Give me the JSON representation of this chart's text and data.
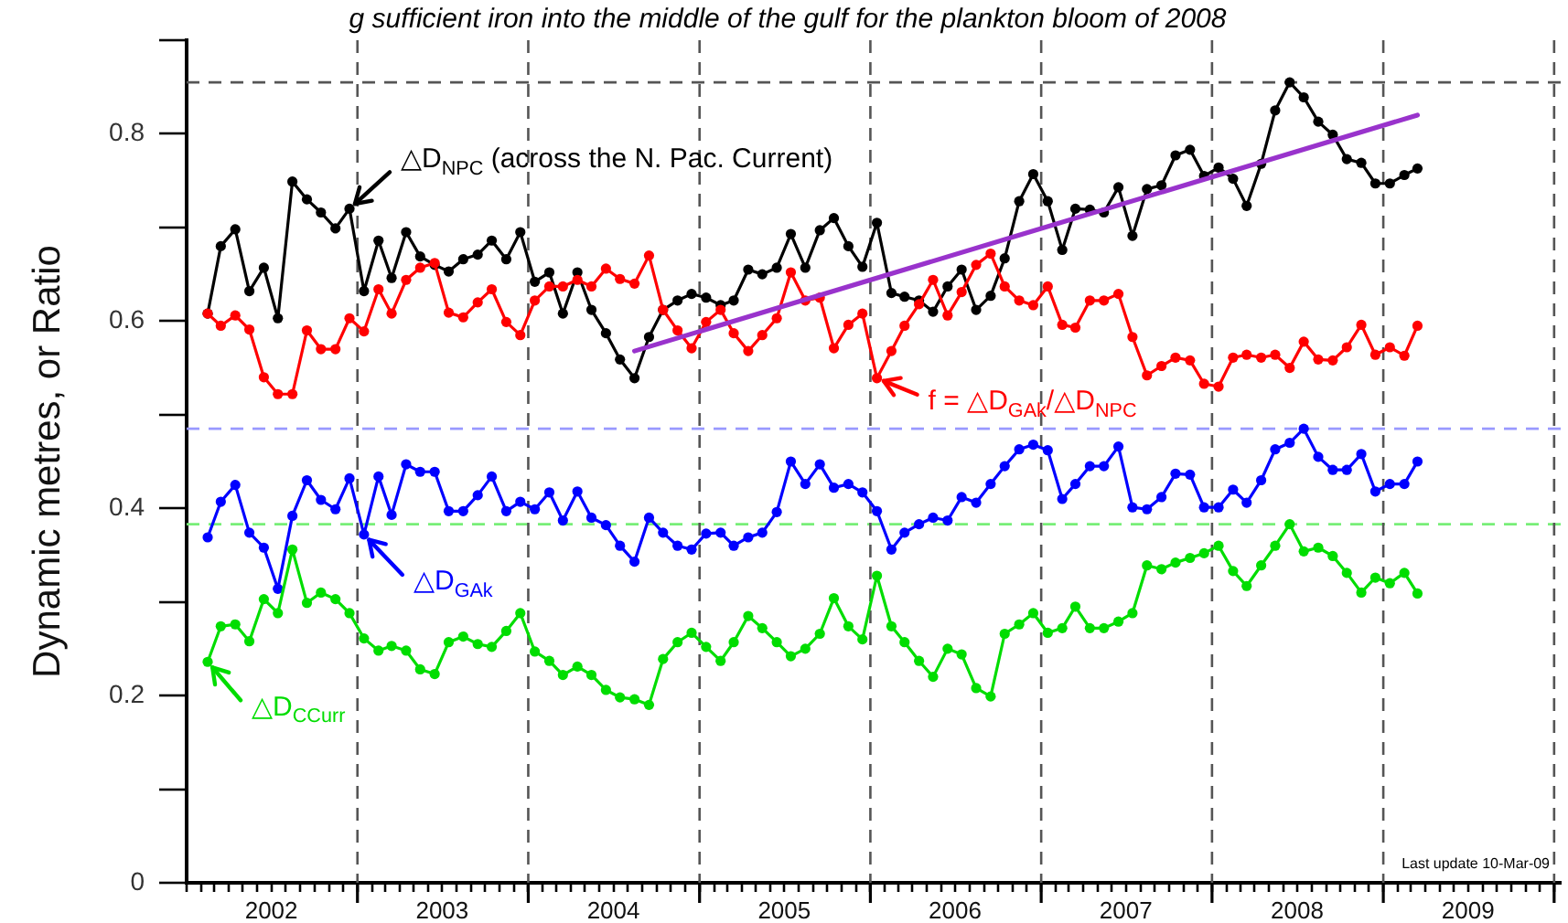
{
  "chart_data": {
    "type": "line",
    "title": "g sufficient iron into the middle of the gulf for the plankton bloom of 2008",
    "ylabel": "Dynamic metres, or Ratio",
    "marker": "circle",
    "x": [
      "2002-02-15",
      "2002-03-15",
      "2002-04-15",
      "2002-05-15",
      "2002-06-15",
      "2002-07-15",
      "2002-08-15",
      "2002-09-15",
      "2002-10-15",
      "2002-11-15",
      "2002-12-15",
      "2003-01-15",
      "2003-02-15",
      "2003-03-15",
      "2003-04-15",
      "2003-05-15",
      "2003-06-15",
      "2003-07-15",
      "2003-08-15",
      "2003-09-15",
      "2003-10-15",
      "2003-11-15",
      "2003-12-15",
      "2004-01-15",
      "2004-02-15",
      "2004-03-15",
      "2004-04-15",
      "2004-05-15",
      "2004-06-15",
      "2004-07-15",
      "2004-08-15",
      "2004-09-15",
      "2004-10-15",
      "2004-11-15",
      "2004-12-15",
      "2005-01-15",
      "2005-02-15",
      "2005-03-15",
      "2005-04-15",
      "2005-05-15",
      "2005-06-15",
      "2005-07-15",
      "2005-08-15",
      "2005-09-15",
      "2005-10-15",
      "2005-11-15",
      "2005-12-15",
      "2006-01-15",
      "2006-02-15",
      "2006-03-15",
      "2006-04-15",
      "2006-05-15",
      "2006-06-15",
      "2006-07-15",
      "2006-08-15",
      "2006-09-15",
      "2006-10-15",
      "2006-11-15",
      "2006-12-15",
      "2007-01-15",
      "2007-02-15",
      "2007-03-15",
      "2007-04-15",
      "2007-05-15",
      "2007-06-15",
      "2007-07-15",
      "2007-08-15",
      "2007-09-15",
      "2007-10-15",
      "2007-11-15",
      "2007-12-15",
      "2008-01-15",
      "2008-02-15",
      "2008-03-15",
      "2008-04-15",
      "2008-05-15",
      "2008-06-15",
      "2008-07-15",
      "2008-08-15",
      "2008-09-15",
      "2008-10-15",
      "2008-11-15",
      "2008-12-15",
      "2009-01-15",
      "2009-02-15",
      "2009-03-15"
    ],
    "xlim": [
      "2002-01-01",
      "2010-01-15"
    ],
    "xticks": [
      {
        "value": "2002-01-01",
        "label": null
      },
      {
        "value": "2002-02-01",
        "label": null
      },
      {
        "value": "2002-03-01",
        "label": null
      },
      {
        "value": "2002-04-01",
        "label": null
      },
      {
        "value": "2002-05-01",
        "label": null
      },
      {
        "value": "2002-06-01",
        "label": null
      },
      {
        "value": "2002-07-01",
        "label": "2002"
      },
      {
        "value": "2002-08-01",
        "label": null
      },
      {
        "value": "2002-09-01",
        "label": null
      },
      {
        "value": "2002-10-01",
        "label": null
      },
      {
        "value": "2002-11-01",
        "label": null
      },
      {
        "value": "2002-12-01",
        "label": null
      },
      {
        "value": "2003-01-01",
        "label": null
      },
      {
        "value": "2003-02-01",
        "label": null
      },
      {
        "value": "2003-03-01",
        "label": null
      },
      {
        "value": "2003-04-01",
        "label": null
      },
      {
        "value": "2003-05-01",
        "label": null
      },
      {
        "value": "2003-06-01",
        "label": null
      },
      {
        "value": "2003-07-01",
        "label": "2003"
      },
      {
        "value": "2003-08-01",
        "label": null
      },
      {
        "value": "2003-09-01",
        "label": null
      },
      {
        "value": "2003-10-01",
        "label": null
      },
      {
        "value": "2003-11-01",
        "label": null
      },
      {
        "value": "2003-12-01",
        "label": null
      },
      {
        "value": "2004-01-01",
        "label": null
      },
      {
        "value": "2004-02-01",
        "label": null
      },
      {
        "value": "2004-03-01",
        "label": null
      },
      {
        "value": "2004-04-01",
        "label": null
      },
      {
        "value": "2004-05-01",
        "label": null
      },
      {
        "value": "2004-06-01",
        "label": null
      },
      {
        "value": "2004-07-01",
        "label": "2004"
      },
      {
        "value": "2004-08-01",
        "label": null
      },
      {
        "value": "2004-09-01",
        "label": null
      },
      {
        "value": "2004-10-01",
        "label": null
      },
      {
        "value": "2004-11-01",
        "label": null
      },
      {
        "value": "2004-12-01",
        "label": null
      },
      {
        "value": "2005-01-01",
        "label": null
      },
      {
        "value": "2005-02-01",
        "label": null
      },
      {
        "value": "2005-03-01",
        "label": null
      },
      {
        "value": "2005-04-01",
        "label": null
      },
      {
        "value": "2005-05-01",
        "label": null
      },
      {
        "value": "2005-06-01",
        "label": null
      },
      {
        "value": "2005-07-01",
        "label": "2005"
      },
      {
        "value": "2005-08-01",
        "label": null
      },
      {
        "value": "2005-09-01",
        "label": null
      },
      {
        "value": "2005-10-01",
        "label": null
      },
      {
        "value": "2005-11-01",
        "label": null
      },
      {
        "value": "2005-12-01",
        "label": null
      },
      {
        "value": "2006-01-01",
        "label": null
      },
      {
        "value": "2006-02-01",
        "label": null
      },
      {
        "value": "2006-03-01",
        "label": null
      },
      {
        "value": "2006-04-01",
        "label": null
      },
      {
        "value": "2006-05-01",
        "label": null
      },
      {
        "value": "2006-06-01",
        "label": null
      },
      {
        "value": "2006-07-01",
        "label": "2006"
      },
      {
        "value": "2006-08-01",
        "label": null
      },
      {
        "value": "2006-09-01",
        "label": null
      },
      {
        "value": "2006-10-01",
        "label": null
      },
      {
        "value": "2006-11-01",
        "label": null
      },
      {
        "value": "2006-12-01",
        "label": null
      },
      {
        "value": "2007-01-01",
        "label": null
      },
      {
        "value": "2007-02-01",
        "label": null
      },
      {
        "value": "2007-03-01",
        "label": null
      },
      {
        "value": "2007-04-01",
        "label": null
      },
      {
        "value": "2007-05-01",
        "label": null
      },
      {
        "value": "2007-06-01",
        "label": null
      },
      {
        "value": "2007-07-01",
        "label": "2007"
      },
      {
        "value": "2007-08-01",
        "label": null
      },
      {
        "value": "2007-09-01",
        "label": null
      },
      {
        "value": "2007-10-01",
        "label": null
      },
      {
        "value": "2007-11-01",
        "label": null
      },
      {
        "value": "2007-12-01",
        "label": null
      },
      {
        "value": "2008-01-01",
        "label": null
      },
      {
        "value": "2008-02-01",
        "label": null
      },
      {
        "value": "2008-03-01",
        "label": null
      },
      {
        "value": "2008-04-01",
        "label": null
      },
      {
        "value": "2008-05-01",
        "label": null
      },
      {
        "value": "2008-06-01",
        "label": null
      },
      {
        "value": "2008-07-01",
        "label": "2008"
      },
      {
        "value": "2008-08-01",
        "label": null
      },
      {
        "value": "2008-09-01",
        "label": null
      },
      {
        "value": "2008-10-01",
        "label": null
      },
      {
        "value": "2008-11-01",
        "label": null
      },
      {
        "value": "2008-12-01",
        "label": null
      },
      {
        "value": "2009-01-01",
        "label": null
      },
      {
        "value": "2009-02-01",
        "label": null
      },
      {
        "value": "2009-03-01",
        "label": null
      },
      {
        "value": "2009-04-01",
        "label": null
      },
      {
        "value": "2009-05-01",
        "label": null
      },
      {
        "value": "2009-06-01",
        "label": null
      },
      {
        "value": "2009-07-01",
        "label": "2009"
      },
      {
        "value": "2009-08-01",
        "label": null
      },
      {
        "value": "2009-09-01",
        "label": null
      },
      {
        "value": "2009-10-01",
        "label": null
      },
      {
        "value": "2009-11-01",
        "label": null
      },
      {
        "value": "2009-12-01",
        "label": null
      },
      {
        "value": "2010-01-01",
        "label": null
      }
    ],
    "ylim": [
      0,
      0.9
    ],
    "yticks": [
      0,
      {
        "value": 0.1,
        "label": null
      },
      0.2,
      {
        "value": 0.3,
        "label": null
      },
      0.4,
      {
        "value": 0.5,
        "label": null
      },
      0.6,
      {
        "value": 0.7,
        "label": null
      },
      0.8,
      {
        "value": 0.9,
        "label": null
      }
    ],
    "series": [
      {
        "color": "#000000",
        "values": [
          0.608,
          0.68,
          0.698,
          0.632,
          0.657,
          0.603,
          0.749,
          0.73,
          0.716,
          0.699,
          0.72,
          0.632,
          0.686,
          0.646,
          0.695,
          0.669,
          0.66,
          0.653,
          0.666,
          0.671,
          0.686,
          0.666,
          0.695,
          0.642,
          0.652,
          0.608,
          0.652,
          0.612,
          0.587,
          0.559,
          0.539,
          0.583,
          0.612,
          0.622,
          0.629,
          0.625,
          0.617,
          0.622,
          0.655,
          0.65,
          0.657,
          0.693,
          0.657,
          0.697,
          0.71,
          0.68,
          0.658,
          0.705,
          0.63,
          0.626,
          0.622,
          0.61,
          0.637,
          0.655,
          0.612,
          0.627,
          0.667,
          0.728,
          0.757,
          0.728,
          0.676,
          0.72,
          0.719,
          0.716,
          0.743,
          0.691,
          0.741,
          0.745,
          0.777,
          0.783,
          0.755,
          0.764,
          0.752,
          0.723,
          0.768,
          0.825,
          0.855,
          0.839,
          0.813,
          0.799,
          0.773,
          0.769,
          0.747,
          0.747,
          0.756,
          0.763
        ]
      },
      {
        "color": "#ff0000",
        "values": [
          0.608,
          0.595,
          0.606,
          0.591,
          0.54,
          0.522,
          0.522,
          0.59,
          0.57,
          0.57,
          0.603,
          0.589,
          0.634,
          0.608,
          0.644,
          0.657,
          0.662,
          0.609,
          0.604,
          0.62,
          0.634,
          0.599,
          0.585,
          0.622,
          0.637,
          0.637,
          0.644,
          0.637,
          0.656,
          0.645,
          0.64,
          0.67,
          0.612,
          0.59,
          0.571,
          0.599,
          0.612,
          0.587,
          0.568,
          0.585,
          0.603,
          0.652,
          0.622,
          0.625,
          0.571,
          0.596,
          0.608,
          0.539,
          0.568,
          0.595,
          0.618,
          0.644,
          0.606,
          0.631,
          0.66,
          0.672,
          0.637,
          0.622,
          0.617,
          0.637,
          0.596,
          0.593,
          0.622,
          0.622,
          0.629,
          0.583,
          0.542,
          0.552,
          0.561,
          0.558,
          0.533,
          0.53,
          0.561,
          0.564,
          0.561,
          0.564,
          0.55,
          0.578,
          0.559,
          0.558,
          0.572,
          0.596,
          0.564,
          0.572,
          0.563,
          0.595
        ]
      },
      {
        "color": "#0000ff",
        "values": [
          0.369,
          0.407,
          0.425,
          0.374,
          0.358,
          0.314,
          0.392,
          0.43,
          0.409,
          0.399,
          0.432,
          0.372,
          0.434,
          0.393,
          0.447,
          0.439,
          0.439,
          0.397,
          0.397,
          0.414,
          0.434,
          0.397,
          0.407,
          0.399,
          0.417,
          0.387,
          0.418,
          0.39,
          0.382,
          0.36,
          0.343,
          0.39,
          0.374,
          0.36,
          0.356,
          0.373,
          0.374,
          0.36,
          0.369,
          0.374,
          0.396,
          0.45,
          0.426,
          0.447,
          0.422,
          0.426,
          0.417,
          0.397,
          0.356,
          0.374,
          0.383,
          0.39,
          0.387,
          0.412,
          0.406,
          0.426,
          0.445,
          0.463,
          0.468,
          0.462,
          0.41,
          0.426,
          0.445,
          0.445,
          0.466,
          0.401,
          0.399,
          0.412,
          0.437,
          0.436,
          0.401,
          0.401,
          0.42,
          0.406,
          0.43,
          0.463,
          0.47,
          0.485,
          0.455,
          0.441,
          0.441,
          0.458,
          0.418,
          0.426,
          0.426,
          0.45
        ]
      },
      {
        "color": "#00dd00",
        "values": [
          0.236,
          0.274,
          0.276,
          0.258,
          0.303,
          0.288,
          0.356,
          0.299,
          0.31,
          0.303,
          0.288,
          0.261,
          0.248,
          0.253,
          0.248,
          0.228,
          0.223,
          0.257,
          0.263,
          0.255,
          0.252,
          0.269,
          0.288,
          0.247,
          0.237,
          0.222,
          0.231,
          0.222,
          0.206,
          0.198,
          0.196,
          0.19,
          0.239,
          0.257,
          0.267,
          0.252,
          0.237,
          0.257,
          0.285,
          0.272,
          0.257,
          0.242,
          0.25,
          0.266,
          0.304,
          0.274,
          0.26,
          0.328,
          0.274,
          0.257,
          0.237,
          0.22,
          0.25,
          0.244,
          0.208,
          0.199,
          0.266,
          0.276,
          0.288,
          0.267,
          0.272,
          0.295,
          0.272,
          0.272,
          0.279,
          0.288,
          0.339,
          0.335,
          0.342,
          0.347,
          0.352,
          0.36,
          0.333,
          0.317,
          0.339,
          0.36,
          0.383,
          0.354,
          0.358,
          0.349,
          0.331,
          0.31,
          0.326,
          0.32,
          0.331,
          0.309
        ]
      },
      {
        "color": "#9933cc",
        "marker": "none",
        "x": [
          "2004-08-15",
          "2009-03-15"
        ],
        "values": [
          0.568,
          0.82
        ]
      }
    ],
    "ref_lines": [
      {
        "axis": "y",
        "value": 0.855,
        "color": "#555555",
        "line_style": "dashed"
      },
      {
        "axis": "y",
        "value": 0.485,
        "color": "#9999ff",
        "line_style": "dashed"
      },
      {
        "axis": "y",
        "value": 0.383,
        "color": "#77ee77",
        "line_style": "dashed"
      },
      {
        "axis": "x",
        "value": "2003-01-01",
        "color": "#555555",
        "line_style": "dashed"
      },
      {
        "axis": "x",
        "value": "2004-01-01",
        "color": "#555555",
        "line_style": "dashed"
      },
      {
        "axis": "x",
        "value": "2005-01-01",
        "color": "#555555",
        "line_style": "dashed"
      },
      {
        "axis": "x",
        "value": "2006-01-01",
        "color": "#555555",
        "line_style": "dashed"
      },
      {
        "axis": "x",
        "value": "2007-01-01",
        "color": "#555555",
        "line_style": "dashed"
      },
      {
        "axis": "x",
        "value": "2008-01-01",
        "color": "#555555",
        "line_style": "dashed"
      },
      {
        "axis": "x",
        "value": "2009-01-01",
        "color": "#555555",
        "line_style": "dashed"
      },
      {
        "axis": "x",
        "value": "2010-01-01",
        "color": "#555555",
        "line_style": "dashed"
      }
    ],
    "annotations": [
      {
        "text": "△D$_{NPC}$ (across the N. Pac. Current)",
        "x": "2002-12-15",
        "y": 0.72
      },
      {
        "text": "f = △D$_{GAk}$/△D$_{NPC}$",
        "x": "2006-01-15",
        "y": 0.539
      },
      {
        "text": "△D$_{GAk}$",
        "x": "2003-01-15",
        "y": 0.372
      },
      {
        "text": "△D$_{CCurr}$",
        "x": "2002-02-15",
        "y": 0.236
      },
      "Last update 10-Mar-09"
    ]
  }
}
